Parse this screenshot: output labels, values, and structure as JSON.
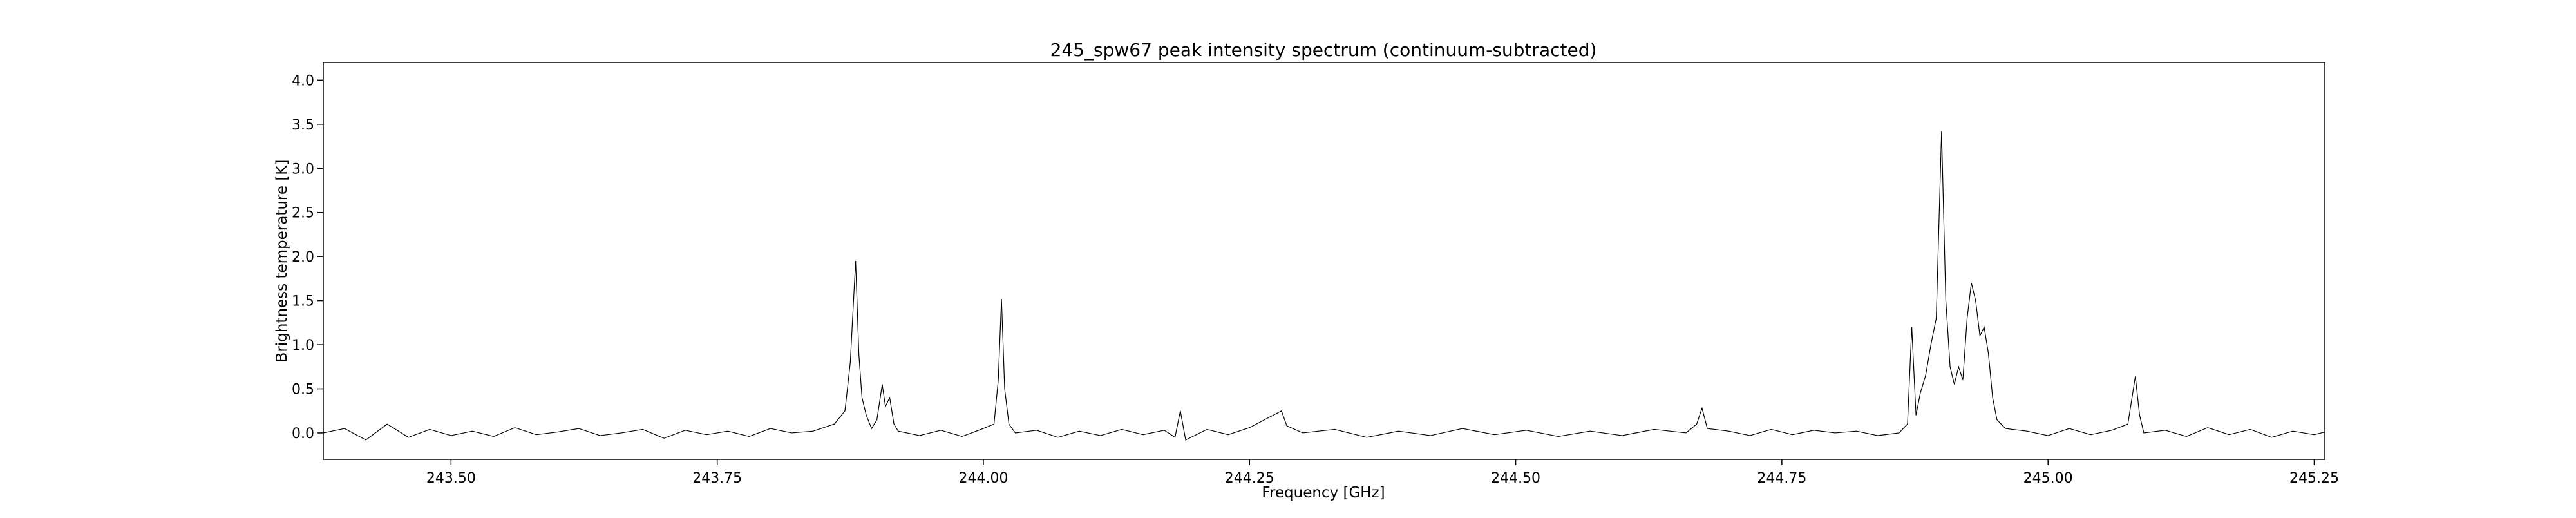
{
  "chart_data": {
    "type": "line",
    "title": "245_spw67 peak intensity spectrum (continuum-subtracted)",
    "xlabel": "Frequency [GHz]",
    "ylabel": "Brightness temperature [K]",
    "xlim": [
      243.38,
      245.26
    ],
    "ylim": [
      -0.3,
      4.2
    ],
    "grid": false,
    "x_ticks": [
      {
        "value": 243.5,
        "label": "243.50"
      },
      {
        "value": 243.75,
        "label": "243.75"
      },
      {
        "value": 244.0,
        "label": "244.00"
      },
      {
        "value": 244.25,
        "label": "244.25"
      },
      {
        "value": 244.5,
        "label": "244.50"
      },
      {
        "value": 244.75,
        "label": "244.75"
      },
      {
        "value": 245.0,
        "label": "245.00"
      },
      {
        "value": 245.25,
        "label": "245.25"
      }
    ],
    "y_ticks": [
      {
        "value": 0.0,
        "label": "0.0"
      },
      {
        "value": 0.5,
        "label": "0.5"
      },
      {
        "value": 1.0,
        "label": "1.0"
      },
      {
        "value": 1.5,
        "label": "1.5"
      },
      {
        "value": 2.0,
        "label": "2.0"
      },
      {
        "value": 2.5,
        "label": "2.5"
      },
      {
        "value": 3.0,
        "label": "3.0"
      },
      {
        "value": 3.5,
        "label": "3.5"
      },
      {
        "value": 4.0,
        "label": "4.0"
      }
    ],
    "series": [
      {
        "color": "#000000",
        "points": [
          [
            243.38,
            0.0
          ],
          [
            243.4,
            0.05
          ],
          [
            243.42,
            -0.08
          ],
          [
            243.44,
            0.1
          ],
          [
            243.46,
            -0.05
          ],
          [
            243.48,
            0.04
          ],
          [
            243.5,
            -0.03
          ],
          [
            243.52,
            0.02
          ],
          [
            243.54,
            -0.04
          ],
          [
            243.56,
            0.06
          ],
          [
            243.58,
            -0.02
          ],
          [
            243.6,
            0.01
          ],
          [
            243.62,
            0.05
          ],
          [
            243.64,
            -0.03
          ],
          [
            243.66,
            0.0
          ],
          [
            243.68,
            0.04
          ],
          [
            243.7,
            -0.06
          ],
          [
            243.72,
            0.03
          ],
          [
            243.74,
            -0.02
          ],
          [
            243.76,
            0.02
          ],
          [
            243.78,
            -0.04
          ],
          [
            243.8,
            0.05
          ],
          [
            243.82,
            0.0
          ],
          [
            243.84,
            0.02
          ],
          [
            243.85,
            0.06
          ],
          [
            243.86,
            0.1
          ],
          [
            243.87,
            0.25
          ],
          [
            243.875,
            0.8
          ],
          [
            243.88,
            1.95
          ],
          [
            243.883,
            0.9
          ],
          [
            243.886,
            0.4
          ],
          [
            243.89,
            0.2
          ],
          [
            243.895,
            0.05
          ],
          [
            243.9,
            0.15
          ],
          [
            243.905,
            0.55
          ],
          [
            243.908,
            0.3
          ],
          [
            243.912,
            0.4
          ],
          [
            243.916,
            0.1
          ],
          [
            243.92,
            0.02
          ],
          [
            243.94,
            -0.03
          ],
          [
            243.96,
            0.03
          ],
          [
            243.98,
            -0.04
          ],
          [
            244.0,
            0.05
          ],
          [
            244.01,
            0.1
          ],
          [
            244.014,
            0.6
          ],
          [
            244.017,
            1.52
          ],
          [
            244.02,
            0.5
          ],
          [
            244.024,
            0.1
          ],
          [
            244.03,
            0.0
          ],
          [
            244.05,
            0.03
          ],
          [
            244.07,
            -0.05
          ],
          [
            244.09,
            0.02
          ],
          [
            244.11,
            -0.03
          ],
          [
            244.13,
            0.04
          ],
          [
            244.15,
            -0.02
          ],
          [
            244.17,
            0.03
          ],
          [
            244.18,
            -0.05
          ],
          [
            244.185,
            0.25
          ],
          [
            244.19,
            -0.08
          ],
          [
            244.21,
            0.04
          ],
          [
            244.23,
            -0.02
          ],
          [
            244.25,
            0.06
          ],
          [
            244.28,
            0.25
          ],
          [
            244.285,
            0.08
          ],
          [
            244.3,
            0.0
          ],
          [
            244.33,
            0.04
          ],
          [
            244.36,
            -0.05
          ],
          [
            244.39,
            0.02
          ],
          [
            244.42,
            -0.03
          ],
          [
            244.45,
            0.05
          ],
          [
            244.48,
            -0.02
          ],
          [
            244.51,
            0.03
          ],
          [
            244.54,
            -0.04
          ],
          [
            244.57,
            0.02
          ],
          [
            244.6,
            -0.03
          ],
          [
            244.63,
            0.04
          ],
          [
            244.66,
            0.0
          ],
          [
            244.67,
            0.1
          ],
          [
            244.675,
            0.28
          ],
          [
            244.68,
            0.05
          ],
          [
            244.7,
            0.02
          ],
          [
            244.72,
            -0.03
          ],
          [
            244.74,
            0.04
          ],
          [
            244.76,
            -0.02
          ],
          [
            244.78,
            0.03
          ],
          [
            244.8,
            0.0
          ],
          [
            244.82,
            0.02
          ],
          [
            244.84,
            -0.03
          ],
          [
            244.86,
            0.0
          ],
          [
            244.868,
            0.1
          ],
          [
            244.872,
            1.2
          ],
          [
            244.876,
            0.2
          ],
          [
            244.88,
            0.45
          ],
          [
            244.885,
            0.65
          ],
          [
            244.89,
            1.0
          ],
          [
            244.895,
            1.3
          ],
          [
            244.9,
            3.42
          ],
          [
            244.904,
            1.5
          ],
          [
            244.908,
            0.75
          ],
          [
            244.912,
            0.55
          ],
          [
            244.916,
            0.75
          ],
          [
            244.92,
            0.6
          ],
          [
            244.924,
            1.3
          ],
          [
            244.928,
            1.7
          ],
          [
            244.932,
            1.5
          ],
          [
            244.936,
            1.1
          ],
          [
            244.94,
            1.2
          ],
          [
            244.944,
            0.9
          ],
          [
            244.948,
            0.4
          ],
          [
            244.952,
            0.15
          ],
          [
            244.96,
            0.05
          ],
          [
            244.98,
            0.02
          ],
          [
            245.0,
            -0.03
          ],
          [
            245.02,
            0.05
          ],
          [
            245.04,
            -0.02
          ],
          [
            245.06,
            0.03
          ],
          [
            245.075,
            0.1
          ],
          [
            245.082,
            0.64
          ],
          [
            245.086,
            0.2
          ],
          [
            245.09,
            0.0
          ],
          [
            245.11,
            0.03
          ],
          [
            245.13,
            -0.04
          ],
          [
            245.15,
            0.06
          ],
          [
            245.17,
            -0.02
          ],
          [
            245.19,
            0.04
          ],
          [
            245.21,
            -0.05
          ],
          [
            245.23,
            0.02
          ],
          [
            245.25,
            -0.02
          ],
          [
            245.26,
            0.01
          ]
        ]
      }
    ]
  }
}
